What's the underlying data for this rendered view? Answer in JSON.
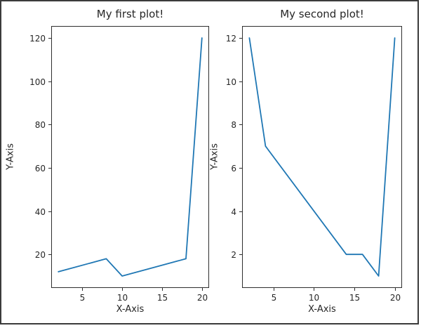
{
  "colors": {
    "line": "#1f77b4",
    "spine": "#2e2e2e",
    "text": "#262626",
    "frame": "#3b3b3b",
    "background": "#ffffff"
  },
  "chart_data": [
    {
      "type": "line",
      "title": "My first plot!",
      "xlabel": "X-Axis",
      "ylabel": "Y-Axis",
      "x": [
        2,
        8,
        10,
        18,
        20
      ],
      "y": [
        12,
        18,
        10,
        18,
        120
      ],
      "xticks": [
        5,
        10,
        15,
        20
      ],
      "yticks": [
        20,
        40,
        60,
        80,
        100,
        120
      ],
      "xlim": [
        1.1,
        20.9
      ],
      "ylim": [
        4.5,
        125.5
      ],
      "grid": false,
      "legend": "none",
      "line_color": "#1f77b4"
    },
    {
      "type": "line",
      "title": "My second plot!",
      "xlabel": "X-Axis",
      "ylabel": "Y-Axis",
      "x": [
        2,
        4,
        14,
        16,
        18,
        20
      ],
      "y": [
        12,
        7,
        2,
        2,
        1,
        12
      ],
      "xticks": [
        5,
        10,
        15,
        20
      ],
      "yticks": [
        2,
        4,
        6,
        8,
        10,
        12
      ],
      "xlim": [
        1.1,
        20.9
      ],
      "ylim": [
        0.45,
        12.55
      ],
      "grid": false,
      "legend": "none",
      "line_color": "#1f77b4"
    }
  ]
}
